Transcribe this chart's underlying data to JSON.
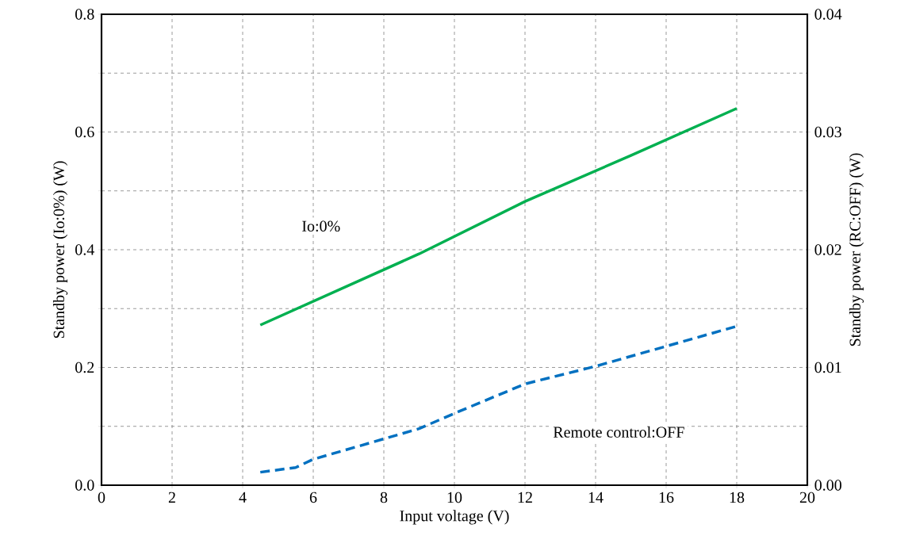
{
  "chart_data": {
    "type": "line",
    "xlabel": "Input voltage (V)",
    "ylabel": "Standby power (Io:0%) (W)",
    "y2label": "Standby power (RC:OFF) (W)",
    "xlim": [
      0,
      20
    ],
    "xticks": [
      0,
      2,
      4,
      6,
      8,
      10,
      12,
      14,
      16,
      18,
      20
    ],
    "ylim": [
      0,
      0.8
    ],
    "yticks": [
      {
        "value": 0,
        "label": "0.0"
      },
      {
        "value": 0.1,
        "label": null
      },
      {
        "value": 0.2,
        "label": "0.2"
      },
      {
        "value": 0.3,
        "label": null
      },
      {
        "value": 0.4,
        "label": "0.4"
      },
      {
        "value": 0.5,
        "label": null
      },
      {
        "value": 0.6,
        "label": "0.6"
      },
      {
        "value": 0.7,
        "label": null
      },
      {
        "value": 0.8,
        "label": "0.8"
      }
    ],
    "y2lim": [
      0,
      0.04
    ],
    "y2ticks": [
      {
        "value": 0,
        "label": "0.00"
      },
      {
        "value": 0.01,
        "label": "0.01"
      },
      {
        "value": 0.02,
        "label": "0.02"
      },
      {
        "value": 0.03,
        "label": "0.03"
      },
      {
        "value": 0.04,
        "label": "0.04"
      }
    ],
    "grid": true,
    "annotations": [
      "Io:0%",
      "Remote control:OFF"
    ],
    "series": [
      {
        "color": "#00b050",
        "line_style": "solid",
        "x": [
          4.5,
          9,
          12,
          15,
          18
        ],
        "values": [
          0.272,
          0.393,
          0.482,
          0.56,
          0.64
        ]
      },
      {
        "color": "#0070c0",
        "line_style": "dashed",
        "axis": "y2",
        "x": [
          4.5,
          5.5,
          6,
          9,
          10,
          12,
          14,
          16,
          18
        ],
        "values": [
          0.0011,
          0.0015,
          0.0022,
          0.0048,
          0.0061,
          0.0086,
          0.0101,
          0.0118,
          0.0135
        ]
      }
    ]
  }
}
